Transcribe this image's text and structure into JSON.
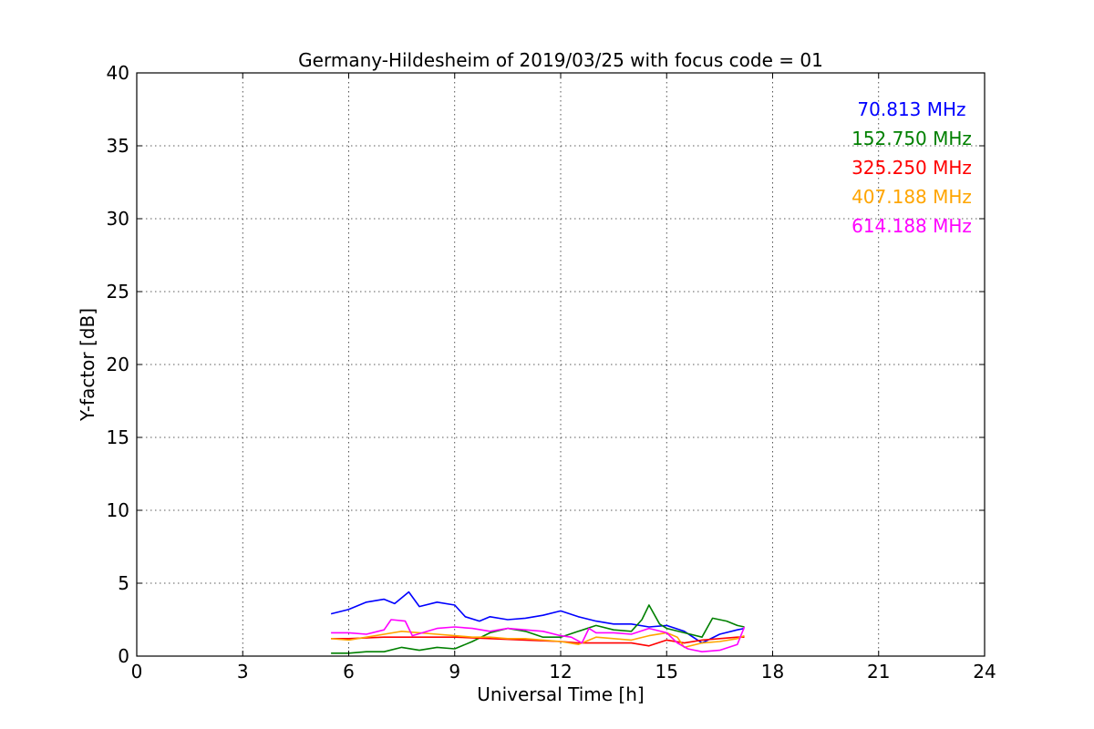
{
  "chart_data": {
    "type": "line",
    "title": "Germany-Hildesheim of 2019/03/25 with focus code = 01",
    "xlabel": "Universal Time [h]",
    "ylabel": "Y-factor [dB]",
    "xlim": [
      0,
      24
    ],
    "ylim": [
      0,
      40
    ],
    "xticks": [
      0,
      3,
      6,
      9,
      12,
      15,
      18,
      21,
      24
    ],
    "yticks": [
      0,
      5,
      10,
      15,
      20,
      25,
      30,
      35,
      40
    ],
    "grid": true,
    "legend_position": "top-right",
    "series": [
      {
        "name": "70.813 MHz",
        "color": "#0000ff",
        "x": [
          5.5,
          6.0,
          6.5,
          7.0,
          7.3,
          7.7,
          8.0,
          8.5,
          9.0,
          9.3,
          9.7,
          10.0,
          10.5,
          11.0,
          11.5,
          12.0,
          12.5,
          13.0,
          13.5,
          14.0,
          14.5,
          15.0,
          15.5,
          16.0,
          16.5,
          17.0,
          17.2
        ],
        "y": [
          2.9,
          3.2,
          3.7,
          3.9,
          3.6,
          4.4,
          3.4,
          3.7,
          3.5,
          2.7,
          2.4,
          2.7,
          2.5,
          2.6,
          2.8,
          3.1,
          2.7,
          2.4,
          2.2,
          2.2,
          2.0,
          2.1,
          1.7,
          0.9,
          1.5,
          1.8,
          1.9
        ]
      },
      {
        "name": "152.750 MHz",
        "color": "#008000",
        "x": [
          5.5,
          6.0,
          6.5,
          7.0,
          7.5,
          8.0,
          8.5,
          9.0,
          9.5,
          10.0,
          10.5,
          11.0,
          11.5,
          12.0,
          12.5,
          13.0,
          13.5,
          14.0,
          14.3,
          14.5,
          14.8,
          15.0,
          15.5,
          16.0,
          16.3,
          16.7,
          17.0,
          17.2
        ],
        "y": [
          0.2,
          0.2,
          0.3,
          0.3,
          0.6,
          0.4,
          0.6,
          0.5,
          1.0,
          1.6,
          1.9,
          1.7,
          1.3,
          1.3,
          1.7,
          2.1,
          1.8,
          1.7,
          2.5,
          3.5,
          2.2,
          1.9,
          1.6,
          1.3,
          2.6,
          2.4,
          2.1,
          2.0
        ]
      },
      {
        "name": "325.250 MHz",
        "color": "#ff0000",
        "x": [
          5.5,
          6.0,
          7.0,
          8.0,
          9.0,
          10.0,
          11.0,
          12.0,
          12.5,
          13.0,
          14.0,
          14.5,
          15.0,
          15.5,
          16.0,
          16.5,
          17.0,
          17.2
        ],
        "y": [
          1.2,
          1.2,
          1.3,
          1.3,
          1.3,
          1.2,
          1.1,
          1.0,
          0.9,
          0.9,
          0.9,
          0.7,
          1.1,
          0.9,
          1.1,
          1.2,
          1.3,
          1.3
        ]
      },
      {
        "name": "407.188 MHz",
        "color": "#ffa500",
        "x": [
          5.5,
          6.0,
          6.5,
          7.0,
          7.5,
          8.0,
          8.5,
          9.0,
          9.5,
          10.0,
          10.5,
          11.0,
          11.5,
          12.0,
          12.5,
          13.0,
          13.5,
          14.0,
          14.5,
          15.0,
          15.3,
          15.5,
          16.0,
          16.5,
          17.0,
          17.2
        ],
        "y": [
          1.2,
          1.1,
          1.3,
          1.5,
          1.7,
          1.6,
          1.5,
          1.4,
          1.3,
          1.3,
          1.2,
          1.2,
          1.1,
          1.0,
          0.8,
          1.3,
          1.2,
          1.1,
          1.4,
          1.6,
          1.3,
          0.6,
          0.9,
          1.0,
          1.2,
          1.4
        ]
      },
      {
        "name": "614.188 MHz",
        "color": "#ff00ff",
        "x": [
          5.5,
          6.0,
          6.5,
          7.0,
          7.2,
          7.6,
          7.8,
          8.5,
          9.0,
          9.5,
          10.0,
          10.5,
          11.0,
          11.5,
          12.0,
          12.3,
          12.6,
          12.8,
          13.0,
          13.5,
          14.0,
          14.5,
          15.0,
          15.3,
          15.6,
          16.0,
          16.5,
          17.0,
          17.2
        ],
        "y": [
          1.6,
          1.6,
          1.5,
          1.8,
          2.5,
          2.4,
          1.4,
          1.9,
          2.0,
          1.9,
          1.7,
          1.9,
          1.8,
          1.7,
          1.4,
          1.3,
          0.9,
          1.9,
          1.6,
          1.6,
          1.5,
          1.9,
          1.6,
          0.9,
          0.5,
          0.3,
          0.4,
          0.8,
          2.0
        ]
      }
    ]
  }
}
